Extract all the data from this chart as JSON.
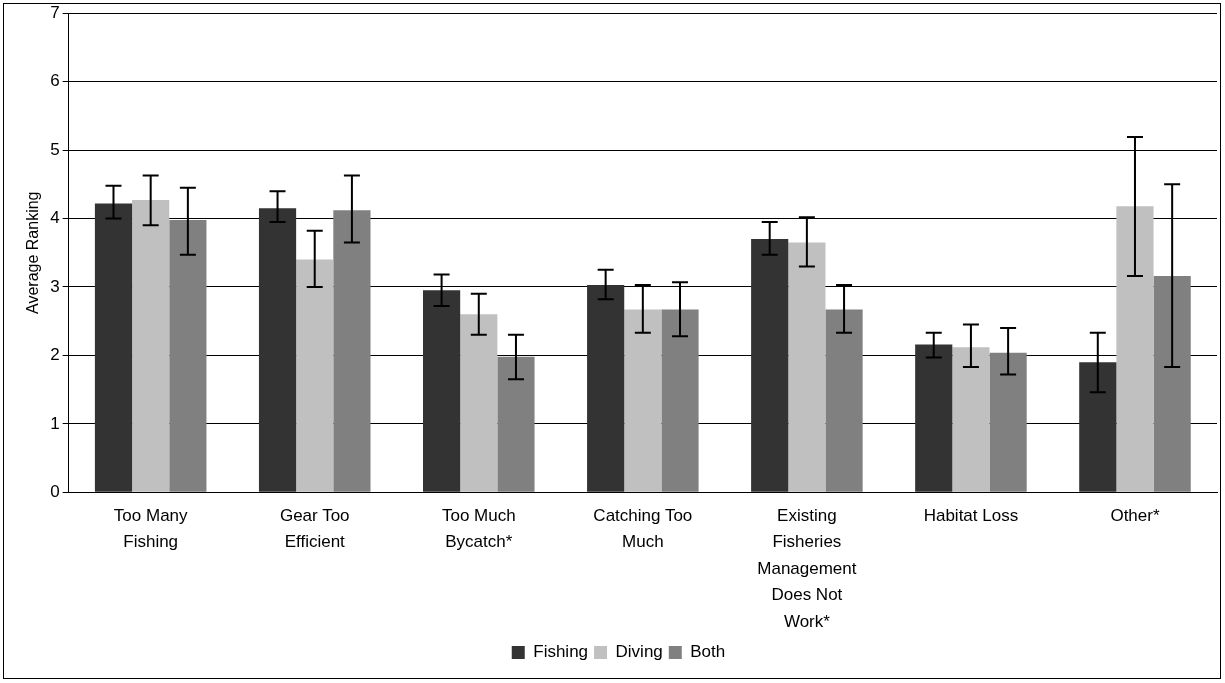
{
  "chart_data": {
    "type": "bar",
    "ylabel": "Average Ranking",
    "categories": [
      "Too Many Fishing",
      "Gear Too Efficient",
      "Too Much Bycatch*",
      "Catching Too Much",
      "Existing Fisheries Management Does Not Work*",
      "Habitat Loss",
      "Other*"
    ],
    "series": [
      {
        "name": "Fishing",
        "color": "#333333",
        "values": [
          4.22,
          4.15,
          2.95,
          3.03,
          3.7,
          2.16,
          1.9
        ],
        "errors": [
          [
            4.0,
            4.48
          ],
          [
            3.95,
            4.4
          ],
          [
            2.72,
            3.18
          ],
          [
            2.82,
            3.25
          ],
          [
            3.47,
            3.95
          ],
          [
            1.97,
            2.33
          ],
          [
            1.46,
            2.33
          ]
        ]
      },
      {
        "name": "Diving",
        "color": "#c0c0c0",
        "values": [
          4.27,
          3.4,
          2.6,
          2.67,
          3.65,
          2.12,
          4.18
        ],
        "errors": [
          [
            3.9,
            4.63
          ],
          [
            3.0,
            3.82
          ],
          [
            2.3,
            2.9
          ],
          [
            2.33,
            3.03
          ],
          [
            3.3,
            4.02
          ],
          [
            1.83,
            2.45
          ],
          [
            3.16,
            5.19
          ]
        ]
      },
      {
        "name": "Both",
        "color": "#808080",
        "values": [
          3.98,
          4.12,
          1.98,
          2.67,
          2.67,
          2.04,
          3.16
        ],
        "errors": [
          [
            3.47,
            4.45
          ],
          [
            3.65,
            4.63
          ],
          [
            1.65,
            2.3
          ],
          [
            2.28,
            3.07
          ],
          [
            2.33,
            3.03
          ],
          [
            1.72,
            2.4
          ],
          [
            1.83,
            4.5
          ]
        ]
      }
    ],
    "ylim": [
      0,
      7
    ],
    "yticks": [
      0,
      1,
      2,
      3,
      4,
      5,
      6,
      7
    ],
    "grid": "y",
    "legend": "bottom"
  }
}
